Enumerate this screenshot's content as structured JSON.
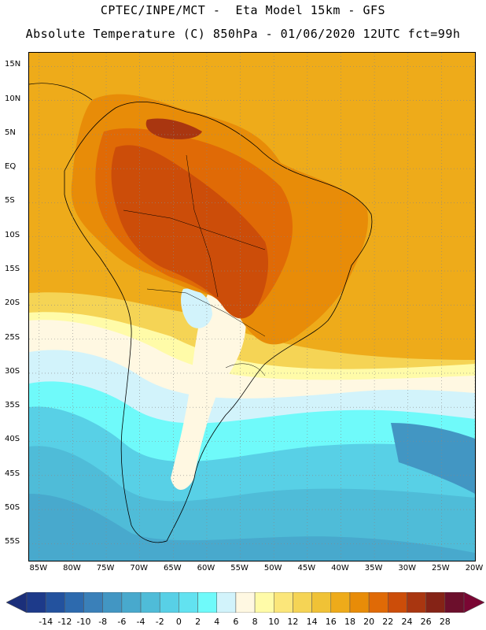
{
  "header": {
    "line1": "CPTEC/INPE/MCT -  Eta Model 15km - GFS",
    "line2": "Absolute Temperature (C) 850hPa - 01/06/2020 12UTC fct=99h"
  },
  "map": {
    "lat_labels": [
      "15N",
      "10N",
      "5N",
      "EQ",
      "5S",
      "10S",
      "15S",
      "20S",
      "25S",
      "30S",
      "35S",
      "40S",
      "45S",
      "50S",
      "55S"
    ],
    "lon_labels": [
      "85W",
      "80W",
      "75W",
      "70W",
      "65W",
      "60W",
      "55W",
      "50W",
      "45W",
      "40W",
      "35W",
      "30W",
      "25W",
      "20W"
    ],
    "lat_range": [
      17,
      -57.5
    ],
    "lon_range": [
      -86.5,
      -20
    ]
  },
  "colorbar": {
    "labels": [
      "-14",
      "-12",
      "-10",
      "-8",
      "-6",
      "-4",
      "-2",
      "0",
      "2",
      "4",
      "6",
      "8",
      "10",
      "12",
      "14",
      "16",
      "18",
      "20",
      "22",
      "24",
      "26",
      "28"
    ],
    "colors": [
      "#1d3a8a",
      "#23529e",
      "#2d6aae",
      "#3a80b9",
      "#4296c3",
      "#48a9cd",
      "#4fbcd8",
      "#58d0e6",
      "#62e2f0",
      "#6ffafa",
      "#d2f3fb",
      "#fff8e2",
      "#fffba8",
      "#fbe67a",
      "#f5d455",
      "#f0c236",
      "#eeab1a",
      "#e88c08",
      "#e06a06",
      "#cc4d09",
      "#a93610",
      "#852316",
      "#6c0f2c"
    ],
    "underflow_color": "#1b2f7a",
    "overflow_color": "#7a0633"
  }
}
